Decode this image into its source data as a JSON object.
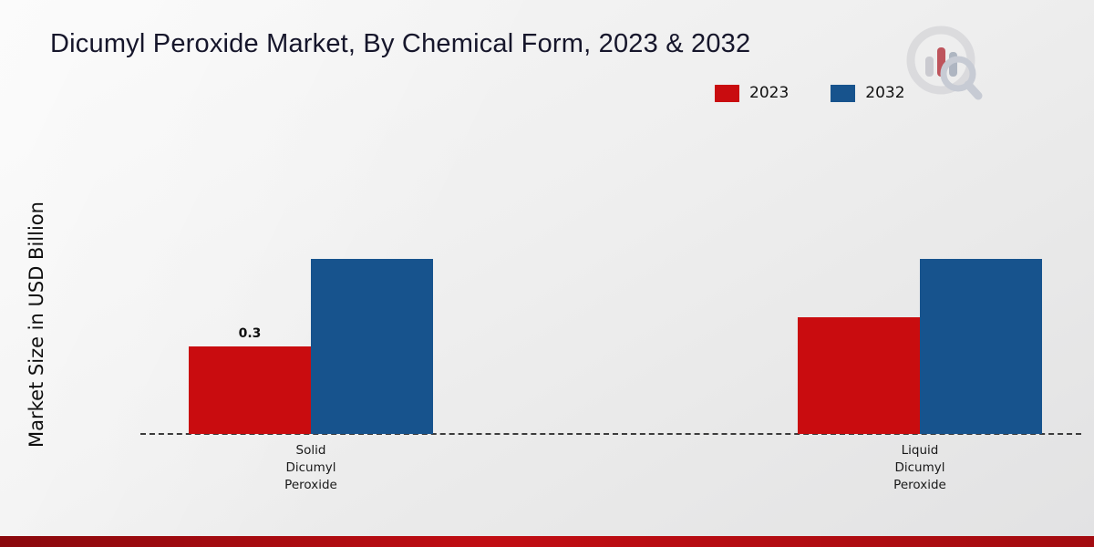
{
  "chart_data": {
    "type": "bar",
    "title": "Dicumyl Peroxide Market, By Chemical Form, 2023 & 2032",
    "categories": [
      "Solid Dicumyl Peroxide",
      "Liquid Dicumyl Peroxide"
    ],
    "series": [
      {
        "name": "2023",
        "color": "#c90c0f",
        "values": [
          0.3,
          0.4
        ]
      },
      {
        "name": "2032",
        "color": "#17538d",
        "values": [
          0.6,
          0.6
        ]
      }
    ],
    "data_labels": [
      {
        "series": "2023",
        "category": "Solid Dicumyl Peroxide",
        "text": "0.3"
      }
    ],
    "xlabel": "",
    "ylabel": "Market Size in USD Billion",
    "ylim": [
      0,
      1
    ],
    "grid": false,
    "legend_position": "top-right",
    "axis_style": "dashed-baseline"
  },
  "branding": {
    "logo_icon": "market-research-bar-chart-magnifier-logo",
    "bottom_bar_color": "#a50d12"
  }
}
